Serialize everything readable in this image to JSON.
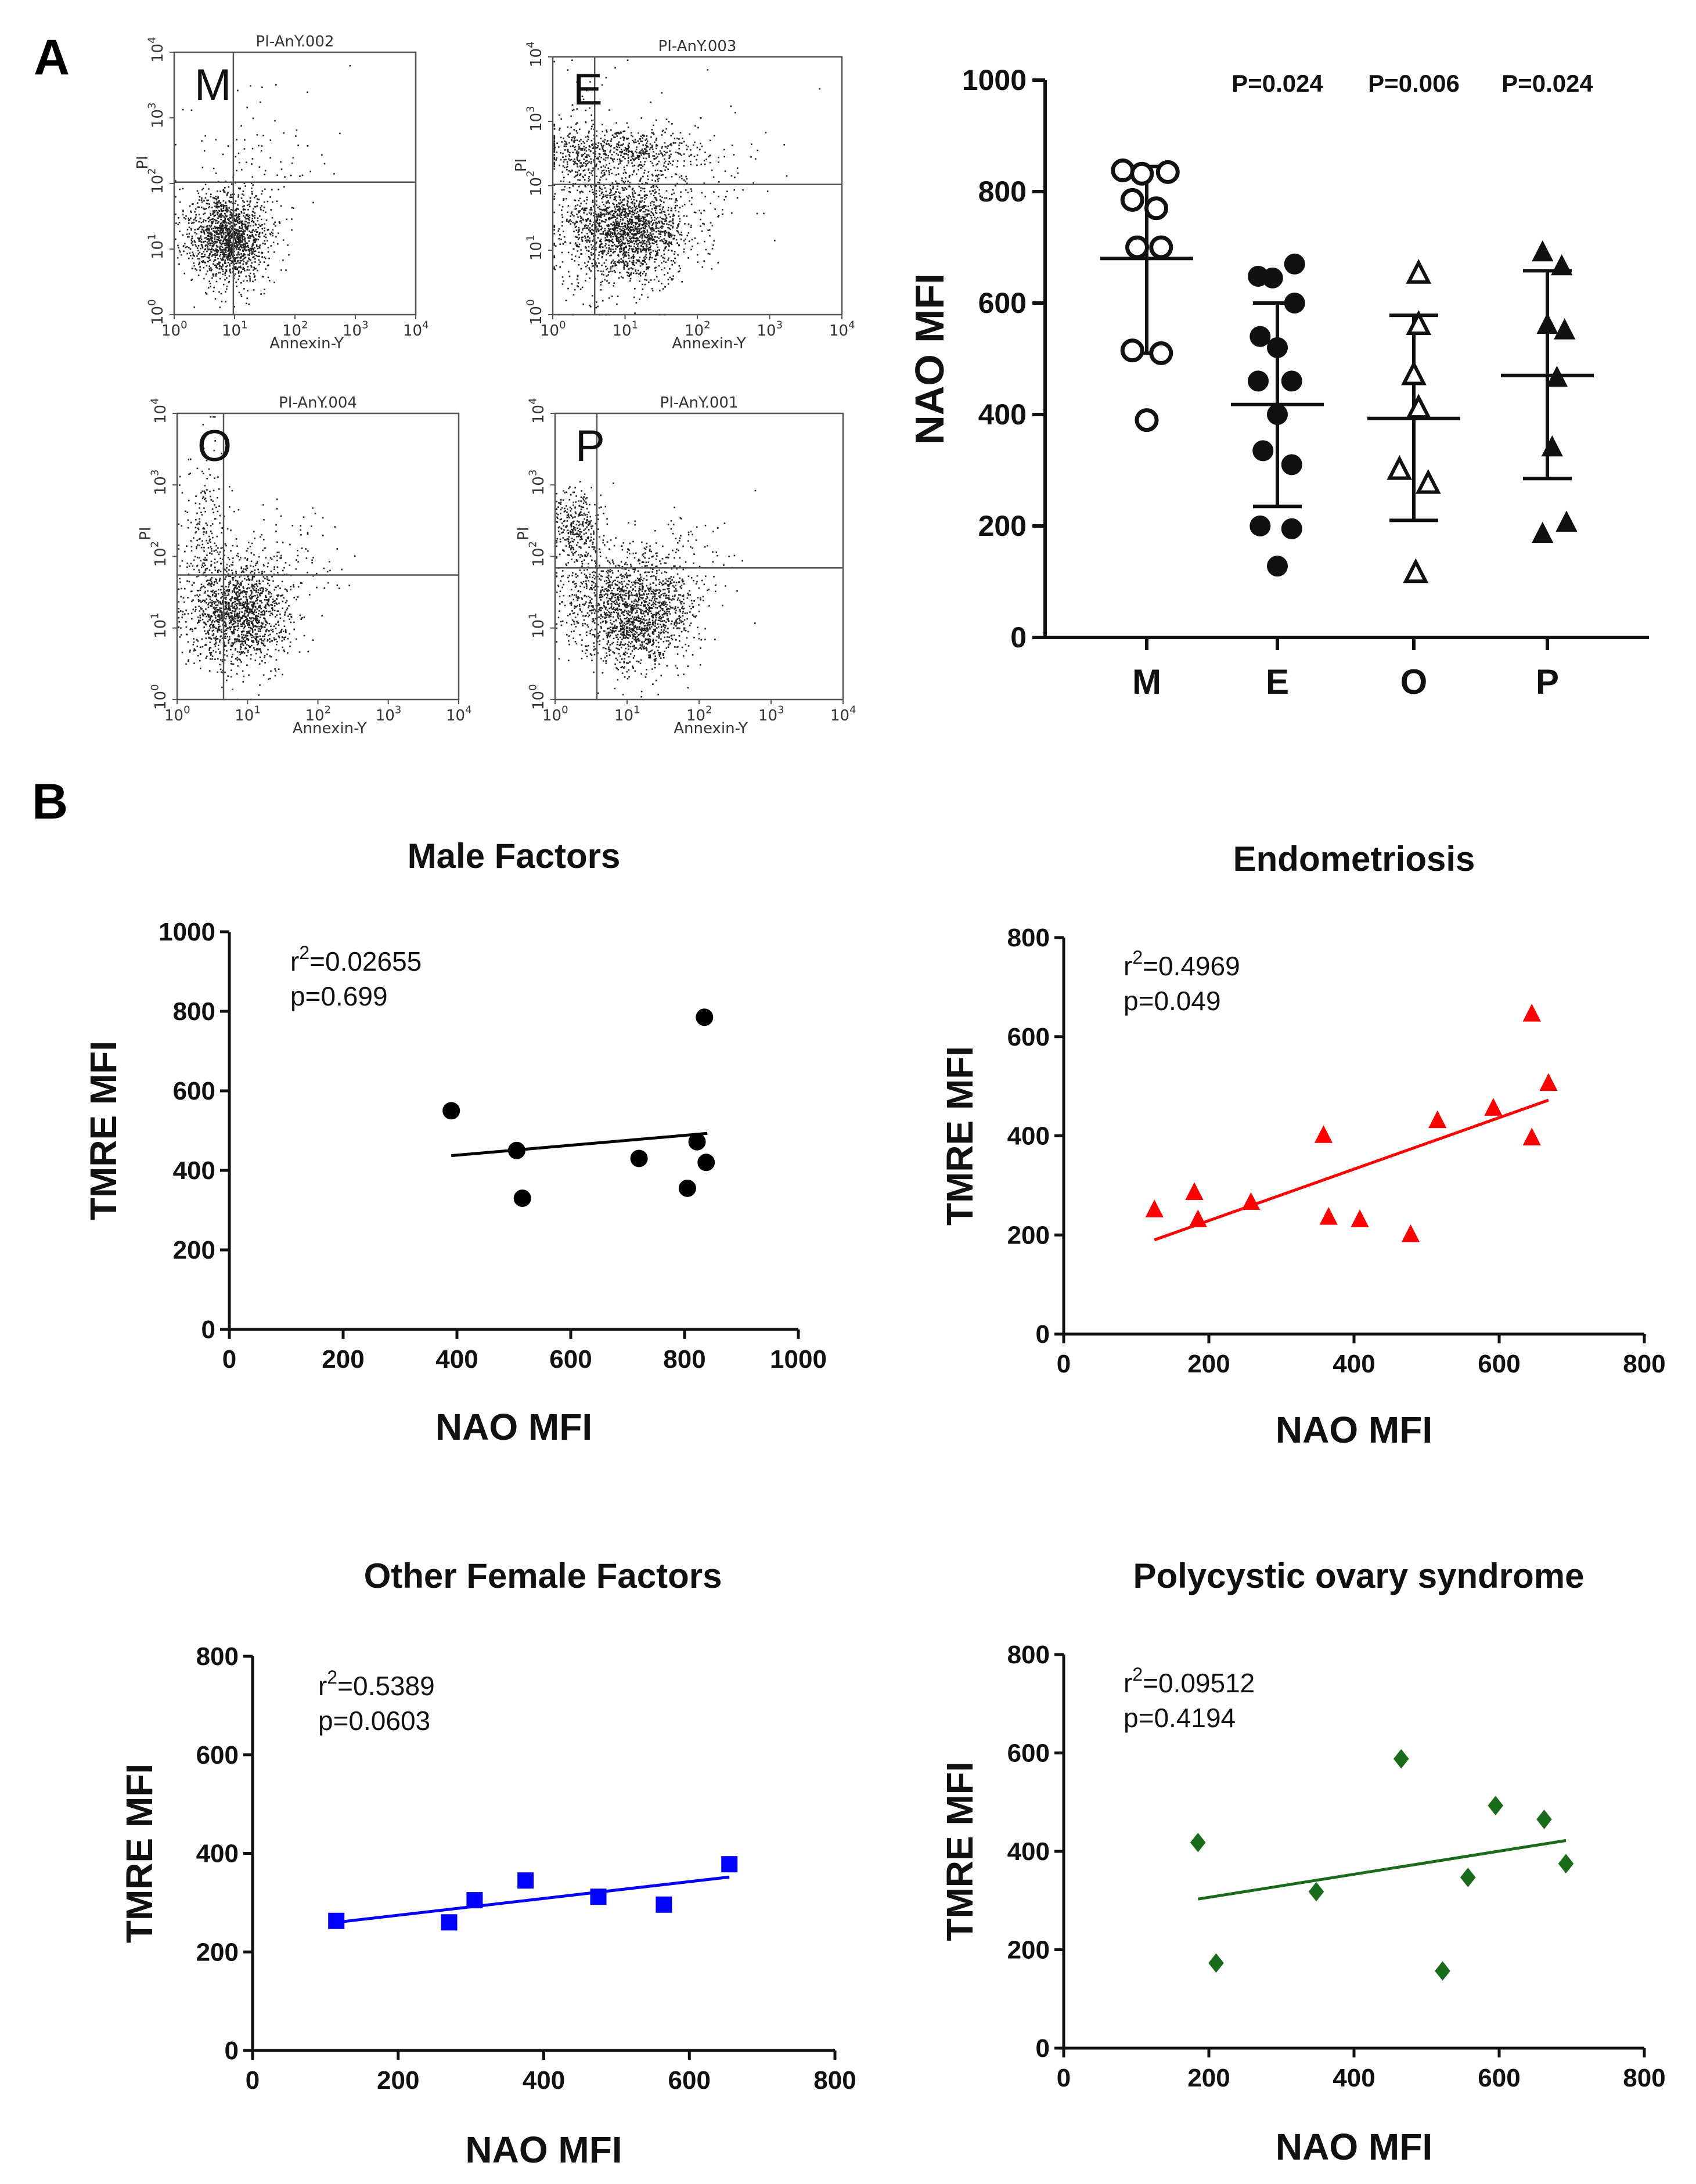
{
  "panel_letters": {
    "a": "A",
    "b": "B"
  },
  "flow_plots": [
    {
      "letter": "M",
      "title": "PI-AnY.002",
      "xlabel": "Annexin-Y",
      "ylabel": "PI",
      "pattern": "M"
    },
    {
      "letter": "E",
      "title": "PI-AnY.003",
      "xlabel": "Annexin-Y",
      "ylabel": "PI",
      "pattern": "E"
    },
    {
      "letter": "O",
      "title": "PI-AnY.004",
      "xlabel": "Annexin-Y",
      "ylabel": "PI",
      "pattern": "O"
    },
    {
      "letter": "P",
      "title": "PI-AnY.001",
      "xlabel": "Annexin-Y",
      "ylabel": "PI",
      "pattern": "P"
    }
  ],
  "flow_tick_labels": {
    "x": [
      {
        "base": "10",
        "exp": "0"
      },
      {
        "base": "10",
        "exp": "1"
      },
      {
        "base": "10",
        "exp": "2"
      },
      {
        "base": "10",
        "exp": "3"
      },
      {
        "base": "10",
        "exp": "4"
      }
    ],
    "y": [
      {
        "base": "10",
        "exp": "0"
      },
      {
        "base": "10",
        "exp": "1"
      },
      {
        "base": "10",
        "exp": "2"
      },
      {
        "base": "10",
        "exp": "3"
      },
      {
        "base": "10",
        "exp": "4"
      }
    ]
  },
  "chart_data": [
    {
      "type": "scatter",
      "id": "nao-groups",
      "title": "",
      "xlabel": "",
      "ylabel": "NAO MFI",
      "ylim": [
        0,
        1000
      ],
      "yticks": [
        0,
        200,
        400,
        600,
        800,
        1000
      ],
      "categories": [
        "M",
        "E",
        "O",
        "P"
      ],
      "p_values": [
        "",
        "P=0.024",
        "P=0.006",
        "P=0.024"
      ],
      "series": [
        {
          "name": "M",
          "marker": "circle-open",
          "mean": 680,
          "sd_low": 510,
          "sd_high": 845,
          "points": [
            [
              -0.25,
              838
            ],
            [
              -0.05,
              832
            ],
            [
              0.22,
              835
            ],
            [
              -0.15,
              785
            ],
            [
              0.1,
              770
            ],
            [
              -0.1,
              700
            ],
            [
              0.15,
              700
            ],
            [
              -0.15,
              515
            ],
            [
              0.15,
              510
            ],
            [
              0.0,
              390
            ]
          ]
        },
        {
          "name": "E",
          "marker": "circle-filled",
          "mean": 418,
          "sd_low": 235,
          "sd_high": 600,
          "points": [
            [
              -0.2,
              648
            ],
            [
              -0.05,
              645
            ],
            [
              0.18,
              670
            ],
            [
              0.18,
              600
            ],
            [
              -0.18,
              540
            ],
            [
              0.0,
              520
            ],
            [
              -0.2,
              460
            ],
            [
              0.15,
              460
            ],
            [
              0.0,
              400
            ],
            [
              -0.15,
              335
            ],
            [
              0.15,
              310
            ],
            [
              -0.18,
              200
            ],
            [
              0.15,
              195
            ],
            [
              0.0,
              128
            ]
          ]
        },
        {
          "name": "O",
          "marker": "triangle-open",
          "mean": 393,
          "sd_low": 210,
          "sd_high": 578,
          "points": [
            [
              0.05,
              652
            ],
            [
              0.05,
              560
            ],
            [
              0.0,
              470
            ],
            [
              0.05,
              410
            ],
            [
              -0.15,
              300
            ],
            [
              0.15,
              275
            ],
            [
              0.02,
              115
            ]
          ]
        },
        {
          "name": "P",
          "marker": "triangle-filled",
          "mean": 470,
          "sd_low": 285,
          "sd_high": 658,
          "points": [
            [
              -0.05,
              690
            ],
            [
              0.15,
              665
            ],
            [
              0.0,
              560
            ],
            [
              0.18,
              550
            ],
            [
              0.1,
              465
            ],
            [
              0.05,
              340
            ],
            [
              -0.05,
              185
            ],
            [
              0.2,
              205
            ]
          ]
        }
      ]
    },
    {
      "type": "scatter",
      "id": "male-factors",
      "title": "Male Factors",
      "xlabel": "NAO MFI",
      "ylabel": "TMRE MFI",
      "xlim": [
        0,
        1000
      ],
      "ylim": [
        0,
        1000
      ],
      "xticks": [
        0,
        200,
        400,
        600,
        800,
        1000
      ],
      "yticks": [
        0,
        200,
        400,
        600,
        800,
        1000
      ],
      "color": "#000000",
      "marker": "circle",
      "r_sup": "2",
      "r2_value": "=0.02655",
      "p_text": "p=0.699",
      "points": [
        [
          390,
          550
        ],
        [
          505,
          450
        ],
        [
          515,
          330
        ],
        [
          720,
          430
        ],
        [
          805,
          355
        ],
        [
          822,
          472
        ],
        [
          838,
          420
        ],
        [
          835,
          785
        ]
      ],
      "fit": [
        [
          390,
          437
        ],
        [
          840,
          493
        ]
      ]
    },
    {
      "type": "scatter",
      "id": "endometriosis",
      "title": "Endometriosis",
      "xlabel": "NAO MFI",
      "ylabel": "TMRE MFI",
      "xlim": [
        0,
        800
      ],
      "ylim": [
        0,
        800
      ],
      "xticks": [
        0,
        200,
        400,
        600,
        800
      ],
      "yticks": [
        0,
        200,
        400,
        600,
        800
      ],
      "color": "#ff0000",
      "marker": "triangle",
      "r_sup": "2",
      "r2_value": "=0.4969",
      "p_text": "p=0.049",
      "points": [
        [
          125,
          250
        ],
        [
          180,
          285
        ],
        [
          185,
          230
        ],
        [
          258,
          265
        ],
        [
          358,
          400
        ],
        [
          365,
          235
        ],
        [
          408,
          230
        ],
        [
          478,
          200
        ],
        [
          515,
          430
        ],
        [
          592,
          455
        ],
        [
          645,
          645
        ],
        [
          645,
          395
        ],
        [
          668,
          505
        ]
      ],
      "fit": [
        [
          125,
          190
        ],
        [
          668,
          472
        ]
      ]
    },
    {
      "type": "scatter",
      "id": "other-female-factors",
      "title": "Other Female Factors",
      "xlabel": "NAO MFI",
      "ylabel": "TMRE MFI",
      "xlim": [
        0,
        800
      ],
      "ylim": [
        0,
        800
      ],
      "xticks": [
        0,
        200,
        400,
        600,
        800
      ],
      "yticks": [
        0,
        200,
        400,
        600,
        800
      ],
      "color": "#0000ff",
      "marker": "square",
      "r_sup": "2",
      "r2_value": "=0.5389",
      "p_text": "p=0.0603",
      "points": [
        [
          115,
          263
        ],
        [
          270,
          260
        ],
        [
          305,
          305
        ],
        [
          375,
          345
        ],
        [
          475,
          312
        ],
        [
          565,
          296
        ],
        [
          655,
          378
        ]
      ],
      "fit": [
        [
          115,
          260
        ],
        [
          655,
          352
        ]
      ]
    },
    {
      "type": "scatter",
      "id": "pcos",
      "title": "Polycystic ovary syndrome",
      "xlabel": "NAO MFI",
      "ylabel": "TMRE MFI",
      "xlim": [
        0,
        800
      ],
      "ylim": [
        0,
        800
      ],
      "xticks": [
        0,
        200,
        400,
        600,
        800
      ],
      "yticks": [
        0,
        200,
        400,
        600,
        800
      ],
      "color": "#1a6b1a",
      "marker": "diamond",
      "r_sup": "2",
      "r2_value": "=0.09512",
      "p_text": "p=0.4194",
      "points": [
        [
          185,
          418
        ],
        [
          210,
          173
        ],
        [
          348,
          318
        ],
        [
          465,
          588
        ],
        [
          522,
          157
        ],
        [
          557,
          347
        ],
        [
          595,
          493
        ],
        [
          662,
          465
        ],
        [
          692,
          375
        ]
      ],
      "fit": [
        [
          185,
          303
        ],
        [
          692,
          422
        ]
      ]
    }
  ]
}
